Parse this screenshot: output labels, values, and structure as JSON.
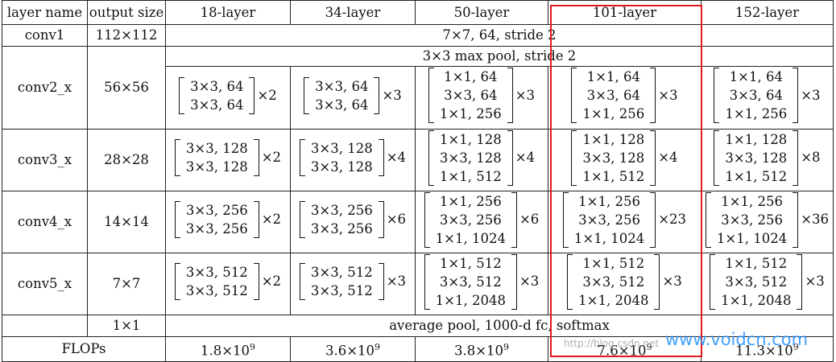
{
  "columns": [
    "layer name",
    "output size",
    "18-layer",
    "34-layer",
    "50-layer",
    "101-layer",
    "152-layer"
  ],
  "conv1": {
    "name": "conv1",
    "size": "112×112",
    "spec": "7×7, 64, stride 2"
  },
  "pool": {
    "spec": "3×3 max pool, stride 2"
  },
  "stages": [
    {
      "name": "conv2_x",
      "size": "56×56",
      "blocks": [
        {
          "rows": [
            "3×3, 64",
            "3×3, 64"
          ],
          "mult": "×2"
        },
        {
          "rows": [
            "3×3, 64",
            "3×3, 64"
          ],
          "mult": "×3"
        },
        {
          "rows": [
            "1×1, 64",
            "3×3, 64",
            "1×1, 256"
          ],
          "mult": "×3"
        },
        {
          "rows": [
            "1×1, 64",
            "3×3, 64",
            "1×1, 256"
          ],
          "mult": "×3"
        },
        {
          "rows": [
            "1×1, 64",
            "3×3, 64",
            "1×1, 256"
          ],
          "mult": "×3"
        }
      ]
    },
    {
      "name": "conv3_x",
      "size": "28×28",
      "blocks": [
        {
          "rows": [
            "3×3, 128",
            "3×3, 128"
          ],
          "mult": "×2"
        },
        {
          "rows": [
            "3×3, 128",
            "3×3, 128"
          ],
          "mult": "×4"
        },
        {
          "rows": [
            "1×1, 128",
            "3×3, 128",
            "1×1, 512"
          ],
          "mult": "×4"
        },
        {
          "rows": [
            "1×1, 128",
            "3×3, 128",
            "1×1, 512"
          ],
          "mult": "×4"
        },
        {
          "rows": [
            "1×1, 128",
            "3×3, 128",
            "1×1, 512"
          ],
          "mult": "×8"
        }
      ]
    },
    {
      "name": "conv4_x",
      "size": "14×14",
      "blocks": [
        {
          "rows": [
            "3×3, 256",
            "3×3, 256"
          ],
          "mult": "×2"
        },
        {
          "rows": [
            "3×3, 256",
            "3×3, 256"
          ],
          "mult": "×6"
        },
        {
          "rows": [
            "1×1, 256",
            "3×3, 256",
            "1×1, 1024"
          ],
          "mult": "×6"
        },
        {
          "rows": [
            "1×1, 256",
            "3×3, 256",
            "1×1, 1024"
          ],
          "mult": "×23"
        },
        {
          "rows": [
            "1×1, 256",
            "3×3, 256",
            "1×1, 1024"
          ],
          "mult": "×36"
        }
      ]
    },
    {
      "name": "conv5_x",
      "size": "7×7",
      "blocks": [
        {
          "rows": [
            "3×3, 512",
            "3×3, 512"
          ],
          "mult": "×2"
        },
        {
          "rows": [
            "3×3, 512",
            "3×3, 512"
          ],
          "mult": "×3"
        },
        {
          "rows": [
            "1×1, 512",
            "3×3, 512",
            "1×1, 2048"
          ],
          "mult": "×3"
        },
        {
          "rows": [
            "1×1, 512",
            "3×3, 512",
            "1×1, 2048"
          ],
          "mult": "×3"
        },
        {
          "rows": [
            "1×1, 512",
            "3×3, 512",
            "1×1, 2048"
          ],
          "mult": "×3"
        }
      ]
    }
  ],
  "avgpool": {
    "size": "1×1",
    "spec": "average pool, 1000-d fc, softmax"
  },
  "flops": {
    "label": "FLOPs",
    "values": [
      {
        "base": "1.8×10",
        "exp": "9"
      },
      {
        "base": "3.6×10",
        "exp": "9"
      },
      {
        "base": "3.8×10",
        "exp": "9"
      },
      {
        "base": "7.6×10",
        "exp": "9"
      },
      {
        "base": "11.3×10",
        "exp": "9"
      }
    ]
  },
  "highlight": {
    "color": "#e2181d",
    "column": "101-layer"
  },
  "watermark": {
    "text": "www.voidcn.com",
    "url": "http://blog.csdn.net",
    "color": "#1e90ff"
  }
}
